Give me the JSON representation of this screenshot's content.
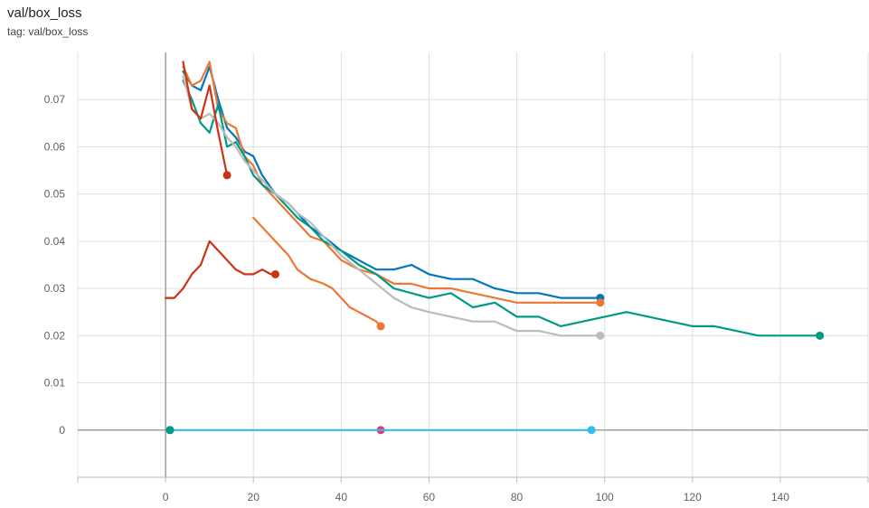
{
  "header": {
    "title": "val/box_loss",
    "subtitle": "tag: val/box_loss"
  },
  "chart_data": {
    "type": "line",
    "title": "val/box_loss",
    "subtitle": "tag: val/box_loss",
    "xlabel": "",
    "ylabel": "",
    "xlim": [
      -20,
      160
    ],
    "ylim": [
      -0.01,
      0.08
    ],
    "xticks": [
      0,
      20,
      40,
      60,
      80,
      100,
      120,
      140
    ],
    "yticks": [
      0,
      0.01,
      0.02,
      0.03,
      0.04,
      0.05,
      0.06,
      0.07
    ],
    "ytick_labels": [
      "0",
      "0.01",
      "0.02",
      "0.03",
      "0.04",
      "0.05",
      "0.06",
      "0.07"
    ],
    "grid": true,
    "legend": "none",
    "series": [
      {
        "color": "#0077bb",
        "x": [
          4,
          6,
          8,
          10,
          12,
          14,
          16,
          18,
          20,
          22,
          25,
          28,
          30,
          33,
          36,
          40,
          44,
          48,
          52,
          56,
          60,
          65,
          70,
          75,
          80,
          85,
          90,
          95,
          99
        ],
        "y": [
          0.076,
          0.073,
          0.072,
          0.077,
          0.07,
          0.064,
          0.062,
          0.059,
          0.058,
          0.054,
          0.05,
          0.048,
          0.046,
          0.043,
          0.041,
          0.038,
          0.036,
          0.034,
          0.034,
          0.035,
          0.033,
          0.032,
          0.032,
          0.03,
          0.029,
          0.029,
          0.028,
          0.028,
          0.028
        ]
      },
      {
        "color": "#ee7733",
        "x": [
          4,
          6,
          8,
          10,
          12,
          14,
          16,
          18,
          20,
          22,
          25,
          28,
          30,
          33,
          36,
          40,
          44,
          48,
          52,
          56,
          60,
          65,
          70,
          75,
          80,
          85,
          90,
          95,
          99
        ],
        "y": [
          0.077,
          0.073,
          0.074,
          0.078,
          0.068,
          0.065,
          0.064,
          0.058,
          0.056,
          0.052,
          0.049,
          0.046,
          0.044,
          0.041,
          0.04,
          0.036,
          0.034,
          0.033,
          0.031,
          0.031,
          0.03,
          0.03,
          0.029,
          0.028,
          0.027,
          0.027,
          0.027,
          0.027,
          0.027
        ]
      },
      {
        "color": "#009988",
        "x": [
          4,
          6,
          8,
          10,
          12,
          14,
          16,
          18,
          20,
          22,
          25,
          28,
          30,
          33,
          36,
          40,
          44,
          48,
          52,
          56,
          60,
          65,
          70,
          75,
          80,
          85,
          90,
          95,
          100,
          105,
          110,
          115,
          120,
          125,
          130,
          135,
          140,
          145,
          149
        ],
        "y": [
          0.074,
          0.07,
          0.065,
          0.063,
          0.069,
          0.06,
          0.061,
          0.058,
          0.054,
          0.052,
          0.05,
          0.047,
          0.045,
          0.043,
          0.04,
          0.038,
          0.035,
          0.033,
          0.03,
          0.029,
          0.028,
          0.029,
          0.026,
          0.027,
          0.024,
          0.024,
          0.022,
          0.023,
          0.024,
          0.025,
          0.024,
          0.023,
          0.022,
          0.022,
          0.021,
          0.02,
          0.02,
          0.02,
          0.02
        ]
      },
      {
        "color": "#bbbbbb",
        "x": [
          4,
          6,
          8,
          10,
          12,
          14,
          16,
          18,
          20,
          22,
          25,
          28,
          30,
          33,
          36,
          40,
          44,
          48,
          52,
          56,
          60,
          65,
          70,
          75,
          80,
          85,
          90,
          95,
          99
        ],
        "y": [
          0.075,
          0.068,
          0.066,
          0.067,
          0.065,
          0.062,
          0.06,
          0.057,
          0.055,
          0.053,
          0.05,
          0.048,
          0.046,
          0.044,
          0.041,
          0.037,
          0.034,
          0.031,
          0.028,
          0.026,
          0.025,
          0.024,
          0.023,
          0.023,
          0.021,
          0.021,
          0.02,
          0.02,
          0.02
        ]
      },
      {
        "color": "#cc3311",
        "x": [
          4,
          6,
          8,
          10,
          12,
          14
        ],
        "y": [
          0.078,
          0.068,
          0.066,
          0.073,
          0.063,
          0.054
        ]
      },
      {
        "color": "#cc3311",
        "x": [
          0,
          2,
          4,
          6,
          8,
          10,
          12,
          14,
          16,
          18,
          20,
          22,
          24,
          25
        ],
        "y": [
          0.028,
          0.028,
          0.03,
          0.033,
          0.035,
          0.04,
          0.038,
          0.036,
          0.034,
          0.033,
          0.033,
          0.034,
          0.033,
          0.033
        ]
      },
      {
        "color": "#ee7733",
        "x": [
          20,
          25,
          28,
          30,
          33,
          36,
          38,
          40,
          42,
          44,
          46,
          48,
          49
        ],
        "y": [
          0.045,
          0.04,
          0.037,
          0.034,
          0.032,
          0.031,
          0.03,
          0.028,
          0.026,
          0.025,
          0.024,
          0.023,
          0.022
        ]
      },
      {
        "color": "#009988",
        "x": [
          1
        ],
        "y": [
          0
        ]
      },
      {
        "color": "#ee3377",
        "x": [
          49
        ],
        "y": [
          0
        ]
      },
      {
        "color": "#33bbee",
        "x": [
          1,
          97
        ],
        "y": [
          0,
          0
        ]
      }
    ]
  }
}
